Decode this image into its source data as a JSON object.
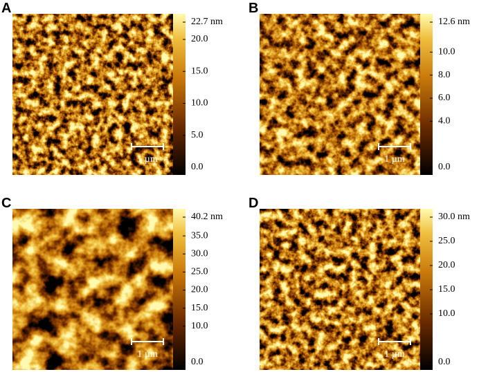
{
  "panels": [
    {
      "label": "A",
      "colorbar": [
        "22.7 nm",
        "20.0",
        "15.0",
        "10.0",
        "5.0",
        "0.0"
      ],
      "scale_bar": "1 µm"
    },
    {
      "label": "B",
      "colorbar": [
        "12.6 nm",
        "10.0",
        "8.0",
        "6.0",
        "4.0",
        "0.0"
      ],
      "scale_bar": "1 µm"
    },
    {
      "label": "C",
      "colorbar": [
        "40.2 nm",
        "35.0",
        "30.0",
        "25.0",
        "20.0",
        "15.0",
        "10.0",
        "0.0"
      ],
      "scale_bar": "1 µm"
    },
    {
      "label": "D",
      "colorbar": [
        "30.0 nm",
        "25.0",
        "20.0",
        "15.0",
        "10.0",
        "0.0"
      ],
      "scale_bar": "1 µm"
    }
  ]
}
